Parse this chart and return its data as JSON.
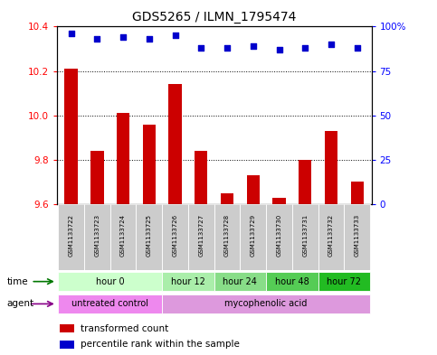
{
  "title": "GDS5265 / ILMN_1795474",
  "samples": [
    "GSM1133722",
    "GSM1133723",
    "GSM1133724",
    "GSM1133725",
    "GSM1133726",
    "GSM1133727",
    "GSM1133728",
    "GSM1133729",
    "GSM1133730",
    "GSM1133731",
    "GSM1133732",
    "GSM1133733"
  ],
  "transformed_count": [
    10.21,
    9.84,
    10.01,
    9.96,
    10.14,
    9.84,
    9.65,
    9.73,
    9.63,
    9.8,
    9.93,
    9.7
  ],
  "percentile_rank": [
    96,
    93,
    94,
    93,
    95,
    88,
    88,
    89,
    87,
    88,
    90,
    88
  ],
  "ylim_left": [
    9.6,
    10.4
  ],
  "ylim_right": [
    0,
    100
  ],
  "yticks_left": [
    9.6,
    9.8,
    10.0,
    10.2,
    10.4
  ],
  "yticks_right": [
    0,
    25,
    50,
    75,
    100
  ],
  "bar_color": "#cc0000",
  "dot_color": "#0000cc",
  "bar_bottom": 9.6,
  "time_groups": [
    {
      "label": "hour 0",
      "indices": [
        0,
        1,
        2,
        3
      ],
      "color": "#ccffcc"
    },
    {
      "label": "hour 12",
      "indices": [
        4,
        5
      ],
      "color": "#aaeeaa"
    },
    {
      "label": "hour 24",
      "indices": [
        6,
        7
      ],
      "color": "#88dd88"
    },
    {
      "label": "hour 48",
      "indices": [
        8,
        9
      ],
      "color": "#55cc55"
    },
    {
      "label": "hour 72",
      "indices": [
        10,
        11
      ],
      "color": "#22bb22"
    }
  ],
  "agent_groups": [
    {
      "label": "untreated control",
      "indices": [
        0,
        1,
        2,
        3
      ],
      "color": "#ee88ee"
    },
    {
      "label": "mycophenolic acid",
      "indices": [
        4,
        5,
        6,
        7,
        8,
        9,
        10,
        11
      ],
      "color": "#dd99dd"
    }
  ],
  "legend_bar_label": "transformed count",
  "legend_dot_label": "percentile rank within the sample",
  "bg_color": "#ffffff",
  "sample_bg_color": "#cccccc",
  "fig_width": 4.83,
  "fig_height": 3.93,
  "dpi": 100
}
